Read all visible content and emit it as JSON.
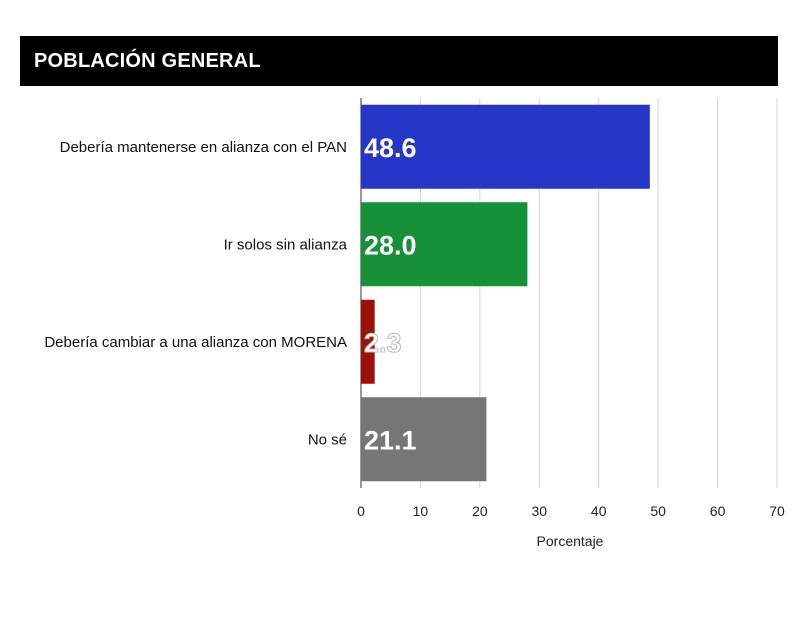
{
  "chart_data": {
    "type": "bar",
    "orientation": "horizontal",
    "title": "POBLACIÓN GENERAL",
    "categories": [
      "Debería mantenerse en alianza con el PAN",
      "Ir solos sin alianza",
      "Debería cambiar a una alianza con MORENA",
      "No sé"
    ],
    "values": [
      48.6,
      28.0,
      2.3,
      21.1
    ],
    "value_labels": [
      "48.6",
      "28.0",
      "2.3",
      "21.1"
    ],
    "colors": [
      "#2437c9",
      "#179138",
      "#9c1209",
      "#767676"
    ],
    "xlabel": "Porcentaje",
    "ylabel": "",
    "xlim": [
      0,
      70
    ],
    "xticks": [
      0,
      10,
      20,
      30,
      40,
      50,
      60,
      70
    ],
    "xtick_labels": [
      "0",
      "10",
      "20",
      "30",
      "40",
      "50",
      "60",
      "70"
    ],
    "grid": true
  }
}
